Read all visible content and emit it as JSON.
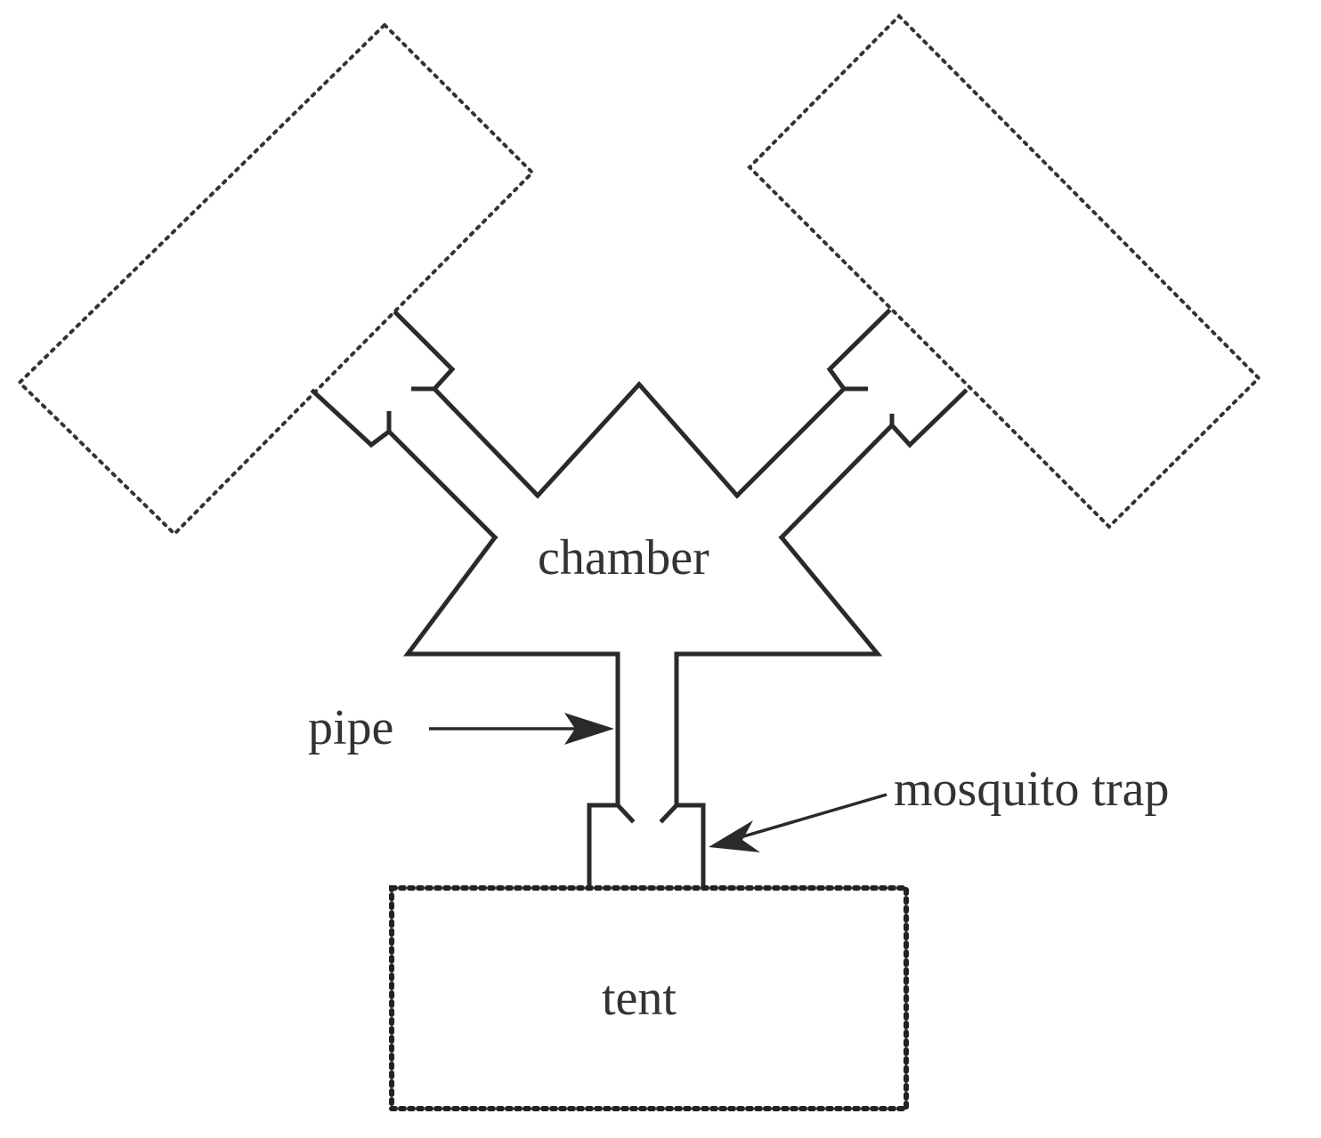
{
  "labels": {
    "chamber": "chamber",
    "pipe": "pipe",
    "mosquito_trap": "mosquito trap",
    "tent": "tent"
  },
  "colors": {
    "line": "#2a2a2a",
    "text": "#333333",
    "background": "#ffffff"
  }
}
